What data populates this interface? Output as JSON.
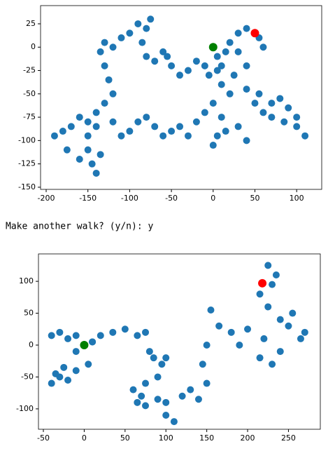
{
  "chart_data": [
    {
      "type": "scatter",
      "xlim": [
        -206.7,
        130
      ],
      "ylim": [
        -152.3,
        44.5
      ],
      "xticks": [
        -200,
        -150,
        -100,
        -50,
        0,
        50,
        100
      ],
      "yticks": [
        -150,
        -125,
        -100,
        -75,
        -50,
        -25,
        0,
        25
      ],
      "series": [
        {
          "color": "#1f77b4",
          "x": [
            0,
            5,
            10,
            15,
            5,
            -5,
            -10,
            -20,
            -30,
            -40,
            -50,
            -55,
            -60,
            -70,
            -80,
            -85,
            -80,
            -75,
            -90,
            -100,
            -110,
            -120,
            -130,
            -135,
            -130,
            -125,
            -120,
            -130,
            -140,
            -150,
            -160,
            -170,
            -180,
            -190,
            -175,
            -160,
            -150,
            -145,
            -140,
            -135,
            -150,
            -140,
            -120,
            -110,
            -100,
            -90,
            -80,
            -70,
            -60,
            -50,
            -40,
            -30,
            -20,
            -10,
            0,
            10,
            5,
            0,
            15,
            30,
            40,
            20,
            10,
            25,
            40,
            55,
            70,
            80,
            90,
            100,
            110,
            100,
            85,
            70,
            60,
            50,
            40,
            30,
            20,
            30,
            40,
            55,
            60,
            50
          ],
          "values": [
            0,
            -10,
            -20,
            -5,
            -25,
            -30,
            -20,
            -15,
            -25,
            -30,
            -20,
            -10,
            -5,
            -15,
            -10,
            5,
            20,
            30,
            25,
            15,
            10,
            0,
            5,
            -5,
            -20,
            -35,
            -50,
            -60,
            -70,
            -80,
            -75,
            -85,
            -90,
            -95,
            -110,
            -120,
            -110,
            -125,
            -135,
            -115,
            -95,
            -85,
            -80,
            -95,
            -90,
            -80,
            -75,
            -85,
            -95,
            -90,
            -85,
            -95,
            -80,
            -70,
            -60,
            -75,
            -95,
            -105,
            -90,
            -85,
            -100,
            -50,
            -40,
            -30,
            -45,
            -50,
            -60,
            -55,
            -65,
            -75,
            -95,
            -85,
            -80,
            -75,
            -70,
            -60,
            -20,
            -5,
            5,
            15,
            20,
            10,
            0,
            15
          ]
        },
        {
          "color": "green",
          "x": [
            0
          ],
          "values": [
            0
          ]
        },
        {
          "color": "red",
          "x": [
            50
          ],
          "values": [
            15
          ]
        }
      ]
    },
    {
      "type": "scatter",
      "xlim": [
        -56,
        289
      ],
      "ylim": [
        -132,
        143
      ],
      "xticks": [
        -50,
        0,
        50,
        100,
        150,
        200,
        250
      ],
      "yticks": [
        -100,
        -50,
        0,
        50,
        100
      ],
      "series": [
        {
          "color": "#1f77b4",
          "x": [
            -40,
            -30,
            -20,
            -10,
            0,
            10,
            5,
            -10,
            -20,
            -30,
            -40,
            -35,
            -25,
            -10,
            10,
            20,
            35,
            50,
            65,
            75,
            80,
            85,
            95,
            100,
            90,
            75,
            70,
            60,
            65,
            75,
            90,
            100,
            110,
            100,
            120,
            130,
            140,
            150,
            145,
            150,
            155,
            165,
            180,
            200,
            190,
            215,
            230,
            220,
            240,
            250,
            265,
            270,
            255,
            240,
            225,
            215,
            225,
            235,
            230,
            218
          ],
          "values": [
            15,
            20,
            10,
            15,
            0,
            5,
            -30,
            -40,
            -55,
            -50,
            -60,
            -45,
            -35,
            -10,
            5,
            15,
            20,
            25,
            15,
            20,
            -10,
            -20,
            -30,
            -20,
            -50,
            -60,
            -80,
            -70,
            -90,
            -95,
            -85,
            -110,
            -120,
            -90,
            -80,
            -70,
            -85,
            -60,
            -30,
            0,
            55,
            30,
            20,
            25,
            0,
            -20,
            -30,
            10,
            -10,
            30,
            10,
            20,
            50,
            40,
            60,
            80,
            125,
            110,
            95,
            97
          ]
        },
        {
          "color": "green",
          "x": [
            0
          ],
          "values": [
            0
          ]
        },
        {
          "color": "red",
          "x": [
            218
          ],
          "values": [
            97
          ]
        }
      ]
    }
  ],
  "prompt": "Make another walk? (y/n): y"
}
